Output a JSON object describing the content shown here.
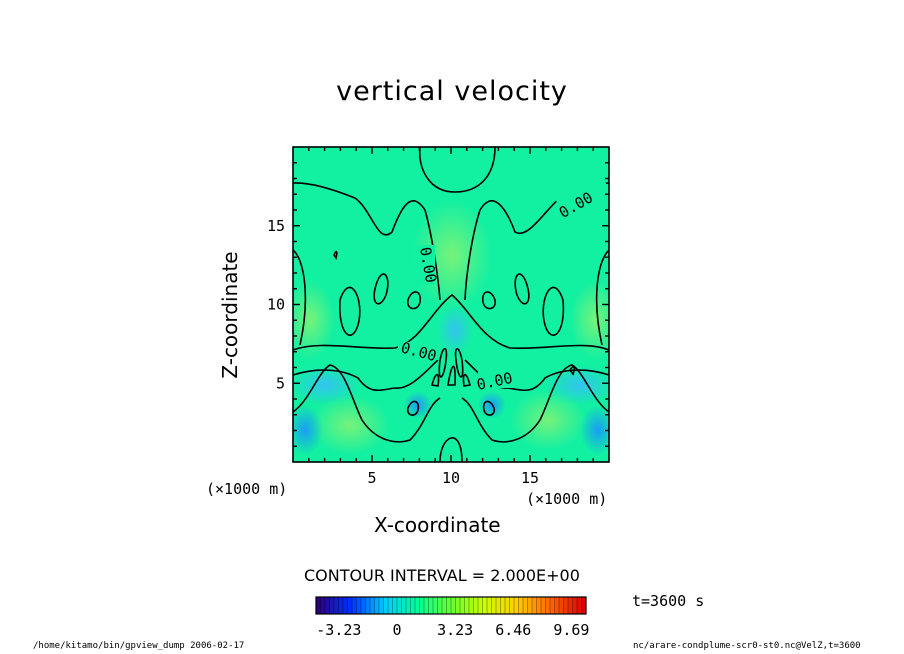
{
  "figure": {
    "title": "vertical velocity",
    "contour_interval": "CONTOUR INTERVAL = 2.000E+00",
    "time_label": "t=3600 s",
    "footer_left": "/home/kitamo/bin/gpview_dump  2006-02-17",
    "footer_right": "nc/arare-condplume-scr0-st0.nc@VelZ,t=3600"
  },
  "chart_data": {
    "type": "heatmap",
    "title": "vertical velocity",
    "xlabel": "X-coordinate",
    "ylabel": "Z-coordinate",
    "x_unit": "(×1000 m)",
    "z_unit": "(×1000 m)",
    "xlim": [
      0,
      20
    ],
    "ylim": [
      0,
      20
    ],
    "x_ticks": [
      5,
      10,
      15
    ],
    "y_ticks": [
      5,
      10,
      15
    ],
    "contour_level_labels": [
      "0.00",
      "0.00",
      "0.00",
      "0.00"
    ],
    "contour_interval": 2.0,
    "colorbar": {
      "ticks": [
        "-3.23",
        "0",
        "3.23",
        "6.46",
        "9.69"
      ],
      "min": -4.5,
      "max": 10.5,
      "colors": [
        "#2b0080",
        "#0033ff",
        "#00ccff",
        "#00ff99",
        "#66ff33",
        "#ccff00",
        "#ffcc00",
        "#ff6600",
        "#dd0000"
      ]
    }
  }
}
